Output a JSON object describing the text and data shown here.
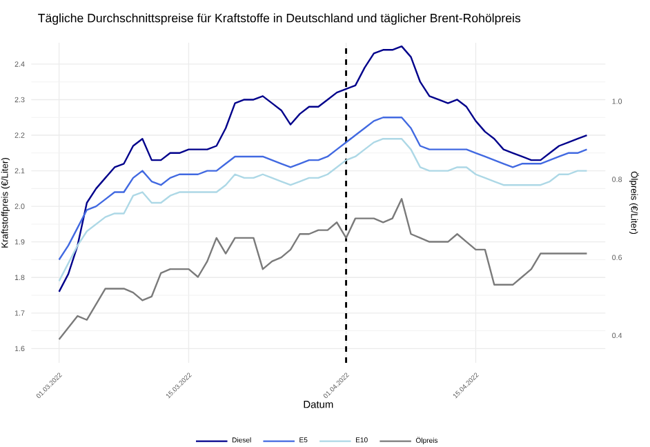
{
  "chart_data": {
    "type": "line",
    "title": "Tägliche Durchschnittspreise für Kraftstoffe in Deutschland und täglicher Brent-Rohölpreis",
    "xlabel": "Datum",
    "ylabel": "Kraftstoffpreis (€/Liter)",
    "y2label": "Ölpreis (€/Liter)",
    "x": [
      "2022-03-01",
      "2022-03-02",
      "2022-03-03",
      "2022-03-04",
      "2022-03-05",
      "2022-03-06",
      "2022-03-07",
      "2022-03-08",
      "2022-03-09",
      "2022-03-10",
      "2022-03-11",
      "2022-03-12",
      "2022-03-13",
      "2022-03-14",
      "2022-03-15",
      "2022-03-16",
      "2022-03-17",
      "2022-03-18",
      "2022-03-19",
      "2022-03-20",
      "2022-03-21",
      "2022-03-22",
      "2022-03-23",
      "2022-03-24",
      "2022-03-25",
      "2022-03-26",
      "2022-03-27",
      "2022-03-28",
      "2022-03-29",
      "2022-03-30",
      "2022-03-31",
      "2022-04-01",
      "2022-04-02",
      "2022-04-03",
      "2022-04-04",
      "2022-04-05",
      "2022-04-06",
      "2022-04-07",
      "2022-04-08",
      "2022-04-09",
      "2022-04-10",
      "2022-04-11",
      "2022-04-12",
      "2022-04-13",
      "2022-04-14",
      "2022-04-15",
      "2022-04-16",
      "2022-04-17",
      "2022-04-18",
      "2022-04-19",
      "2022-04-20",
      "2022-04-21",
      "2022-04-22",
      "2022-04-23",
      "2022-04-24",
      "2022-04-25",
      "2022-04-26",
      "2022-04-27"
    ],
    "series": [
      {
        "name": "Diesel",
        "color": "#00008b",
        "values": [
          1.76,
          1.81,
          1.89,
          2.01,
          2.05,
          2.08,
          2.11,
          2.12,
          2.17,
          2.19,
          2.13,
          2.13,
          2.15,
          2.15,
          2.16,
          2.16,
          2.16,
          2.17,
          2.22,
          2.29,
          2.3,
          2.3,
          2.31,
          2.29,
          2.27,
          2.23,
          2.26,
          2.28,
          2.28,
          2.3,
          2.32,
          2.33,
          2.34,
          2.39,
          2.43,
          2.44,
          2.44,
          2.45,
          2.42,
          2.35,
          2.31,
          2.3,
          2.29,
          2.3,
          2.28,
          2.24,
          2.21,
          2.19,
          2.16,
          2.15,
          2.14,
          2.13,
          2.13,
          2.15,
          2.17,
          2.18,
          2.19,
          2.2
        ]
      },
      {
        "name": "E5",
        "color": "#4169e1",
        "values": [
          1.85,
          1.89,
          1.94,
          1.99,
          2.0,
          2.02,
          2.04,
          2.04,
          2.08,
          2.1,
          2.07,
          2.06,
          2.08,
          2.09,
          2.09,
          2.09,
          2.1,
          2.1,
          2.12,
          2.14,
          2.14,
          2.14,
          2.14,
          2.13,
          2.12,
          2.11,
          2.12,
          2.13,
          2.13,
          2.14,
          2.16,
          2.18,
          2.2,
          2.22,
          2.24,
          2.25,
          2.25,
          2.25,
          2.22,
          2.17,
          2.16,
          2.16,
          2.16,
          2.16,
          2.16,
          2.15,
          2.14,
          2.13,
          2.12,
          2.11,
          2.12,
          2.12,
          2.12,
          2.13,
          2.14,
          2.15,
          2.15,
          2.16
        ]
      },
      {
        "name": "E10",
        "color": "#add8e6",
        "values": [
          1.79,
          1.84,
          1.89,
          1.93,
          1.95,
          1.97,
          1.98,
          1.98,
          2.03,
          2.04,
          2.01,
          2.01,
          2.03,
          2.04,
          2.04,
          2.04,
          2.04,
          2.04,
          2.06,
          2.09,
          2.08,
          2.08,
          2.09,
          2.08,
          2.07,
          2.06,
          2.07,
          2.08,
          2.08,
          2.09,
          2.11,
          2.13,
          2.14,
          2.16,
          2.18,
          2.19,
          2.19,
          2.19,
          2.16,
          2.11,
          2.1,
          2.1,
          2.1,
          2.11,
          2.11,
          2.09,
          2.08,
          2.07,
          2.06,
          2.06,
          2.06,
          2.06,
          2.06,
          2.07,
          2.09,
          2.09,
          2.1,
          2.1
        ]
      },
      {
        "name": "Ölpreis",
        "color": "#7a7a7a",
        "axis": "y2",
        "values": [
          0.39,
          0.42,
          0.45,
          0.44,
          0.48,
          0.52,
          0.52,
          0.52,
          0.51,
          0.49,
          0.5,
          0.56,
          0.57,
          0.57,
          0.57,
          0.55,
          0.59,
          0.65,
          0.61,
          0.65,
          0.65,
          0.65,
          0.57,
          0.59,
          0.6,
          0.62,
          0.66,
          0.66,
          0.67,
          0.67,
          0.69,
          0.65,
          0.7,
          0.7,
          0.7,
          0.69,
          0.7,
          0.75,
          0.66,
          0.65,
          0.64,
          0.64,
          0.64,
          0.66,
          0.64,
          0.62,
          0.62,
          0.53,
          0.53,
          0.53,
          0.55,
          0.57,
          0.61,
          0.61,
          0.61,
          0.61,
          0.61,
          0.61
        ]
      }
    ],
    "xlim": [
      "2022-02-26",
      "2022-04-29"
    ],
    "xticks": [
      {
        "value": "2022-03-01",
        "label": "01.03.2022"
      },
      {
        "value": "2022-03-15",
        "label": "15.03.2022"
      },
      {
        "value": "2022-04-01",
        "label": "01.04.2022"
      },
      {
        "value": "2022-04-15",
        "label": "15.04.2022"
      }
    ],
    "ylim": [
      1.56,
      2.46
    ],
    "yticks": [
      1.6,
      1.7,
      1.8,
      1.9,
      {
        "value": 2.0,
        "label": "2.0"
      },
      2.1,
      2.2,
      2.3,
      2.4
    ],
    "y2lim": [
      0.33,
      1.15
    ],
    "y2ticks": [
      0.4,
      0.6,
      0.8,
      {
        "value": 1.0,
        "label": "1.0"
      }
    ],
    "ref_lines": [
      {
        "axis": "x",
        "value": "2022-04-01",
        "color": "#000000",
        "line_style": "dashed"
      }
    ],
    "grid": true,
    "legend": "bottom"
  }
}
